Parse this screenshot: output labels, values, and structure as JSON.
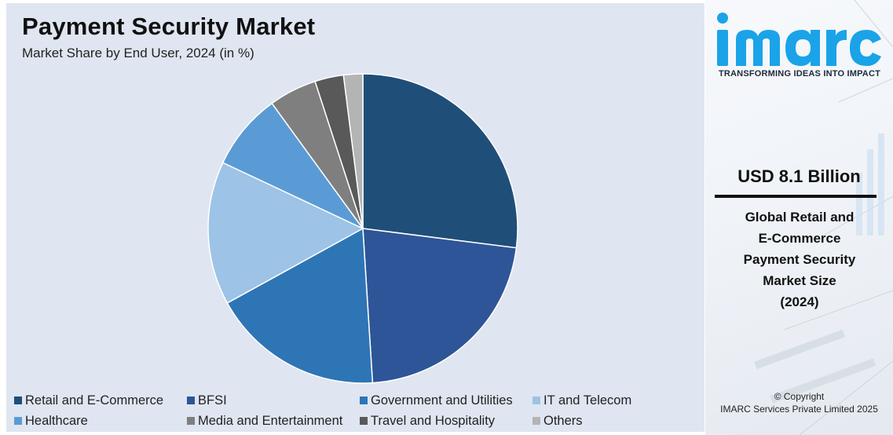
{
  "chart_data": {
    "type": "pie",
    "title": "Payment Security Market",
    "subtitle": "Market Share by End User, 2024 (in %)",
    "legend_position": "bottom",
    "slices": [
      {
        "label": "Retail and E-Commerce",
        "value": 27,
        "color": "#1f4e79"
      },
      {
        "label": "BFSI",
        "value": 22,
        "color": "#2e5597"
      },
      {
        "label": "Government and Utilities",
        "value": 18,
        "color": "#2e75b6"
      },
      {
        "label": "IT and Telecom",
        "value": 15,
        "color": "#9dc3e6"
      },
      {
        "label": "Healthcare",
        "value": 8,
        "color": "#5b9bd5"
      },
      {
        "label": "Media and Entertainment",
        "value": 5,
        "color": "#7f7f7f"
      },
      {
        "label": "Travel and Hospitality",
        "value": 3,
        "color": "#595959"
      },
      {
        "label": "Others",
        "value": 2,
        "color": "#b4b4b4"
      }
    ]
  },
  "sidebar": {
    "brand": "imarc",
    "tagline": "TRANSFORMING IDEAS INTO IMPACT",
    "market_value": "USD 8.1 Billion",
    "market_desc": [
      "Global Retail and",
      "E-Commerce",
      "Payment Security",
      "Market Size",
      "(2024)"
    ],
    "copyright_line1": "© Copyright",
    "copyright_line2": "IMARC Services Private Limited 2025",
    "brand_color": "#1aa3e8"
  }
}
